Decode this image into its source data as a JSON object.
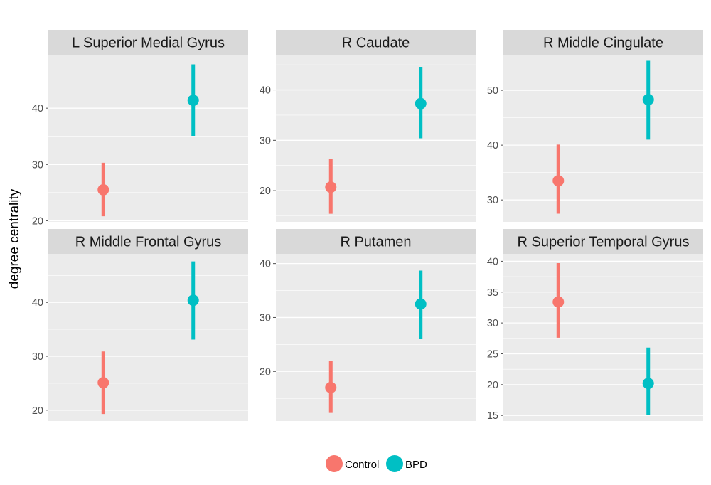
{
  "chart_data": {
    "type": "scatter",
    "variant": "faceted point-range (mean with error bars)",
    "ylabel": "degree centrality",
    "xlabel": "",
    "legend": {
      "position": "bottom",
      "entries": [
        {
          "name": "Control",
          "color": "#F8766D"
        },
        {
          "name": "BPD",
          "color": "#00BFC4"
        }
      ]
    },
    "groups": [
      "Control",
      "BPD"
    ],
    "colors": {
      "Control": "#F8766D",
      "BPD": "#00BFC4"
    },
    "grid": true,
    "facets": [
      {
        "title": "L Superior Medial Gyrus",
        "ylim": [
          19.8,
          49.5
        ],
        "yticks": [
          20,
          30,
          40
        ],
        "points": [
          {
            "group": "Control",
            "value": 25.5,
            "lower": 20.8,
            "upper": 30.3
          },
          {
            "group": "BPD",
            "value": 41.4,
            "lower": 35.1,
            "upper": 47.8
          }
        ]
      },
      {
        "title": "R Caudate",
        "ylim": [
          13.8,
          47
        ],
        "yticks": [
          20,
          30,
          40
        ],
        "points": [
          {
            "group": "Control",
            "value": 20.7,
            "lower": 15.4,
            "upper": 26.3
          },
          {
            "group": "BPD",
            "value": 37.3,
            "lower": 30.4,
            "upper": 44.6
          }
        ]
      },
      {
        "title": "R Middle Cingulate",
        "ylim": [
          26,
          56.5
        ],
        "yticks": [
          30,
          40,
          50
        ],
        "points": [
          {
            "group": "Control",
            "value": 33.5,
            "lower": 27.5,
            "upper": 40.1
          },
          {
            "group": "BPD",
            "value": 48.3,
            "lower": 41.0,
            "upper": 55.4
          }
        ]
      },
      {
        "title": "R Middle Frontal Gyrus",
        "ylim": [
          18,
          49
        ],
        "yticks": [
          20,
          30,
          40
        ],
        "points": [
          {
            "group": "Control",
            "value": 25.1,
            "lower": 19.3,
            "upper": 30.9
          },
          {
            "group": "BPD",
            "value": 40.4,
            "lower": 33.1,
            "upper": 47.6
          }
        ]
      },
      {
        "title": "R Putamen",
        "ylim": [
          10.8,
          41.8
        ],
        "yticks": [
          20,
          30,
          40
        ],
        "points": [
          {
            "group": "Control",
            "value": 17.0,
            "lower": 12.3,
            "upper": 21.9
          },
          {
            "group": "BPD",
            "value": 32.5,
            "lower": 26.1,
            "upper": 38.7
          }
        ]
      },
      {
        "title": "R Superior Temporal Gyrus",
        "ylim": [
          14.1,
          41.2
        ],
        "yticks": [
          15,
          20,
          25,
          30,
          35,
          40
        ],
        "points": [
          {
            "group": "Control",
            "value": 33.4,
            "lower": 27.6,
            "upper": 39.7
          },
          {
            "group": "BPD",
            "value": 20.2,
            "lower": 15.1,
            "upper": 26.0
          }
        ]
      }
    ]
  }
}
